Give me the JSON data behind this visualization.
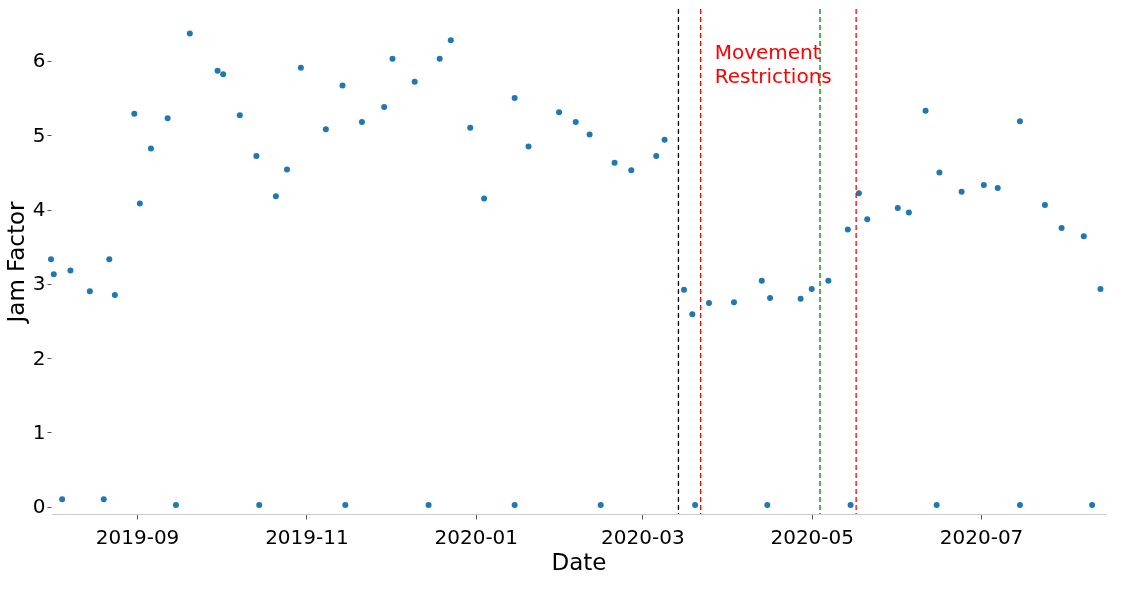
{
  "chart_data": {
    "type": "scatter",
    "xlabel": "Date",
    "ylabel": "Jam Factor",
    "x": [
      "2019-08-01",
      "2019-08-02",
      "2019-08-08",
      "2019-08-15",
      "2019-08-22",
      "2019-08-24",
      "2019-08-31",
      "2019-09-02",
      "2019-09-06",
      "2019-09-12",
      "2019-09-20",
      "2019-09-30",
      "2019-10-02",
      "2019-10-08",
      "2019-10-14",
      "2019-10-21",
      "2019-10-25",
      "2019-10-30",
      "2019-11-08",
      "2019-11-14",
      "2019-11-21",
      "2019-11-29",
      "2019-12-02",
      "2019-12-10",
      "2019-12-19",
      "2019-12-23",
      "2019-12-30",
      "2020-01-04",
      "2020-01-15",
      "2020-01-20",
      "2020-01-31",
      "2020-02-06",
      "2020-02-11",
      "2020-02-20",
      "2020-02-26",
      "2020-03-06",
      "2020-03-09",
      "2020-03-16",
      "2020-03-19",
      "2020-03-25",
      "2020-04-03",
      "2020-04-13",
      "2020-04-16",
      "2020-04-27",
      "2020-05-01",
      "2020-05-07",
      "2020-05-14",
      "2020-05-18",
      "2020-05-21",
      "2020-06-01",
      "2020-06-05",
      "2020-06-11",
      "2020-06-16",
      "2020-06-24",
      "2020-07-02",
      "2020-07-07",
      "2020-07-15",
      "2020-07-24",
      "2020-07-30",
      "2020-08-07",
      "2020-08-13",
      "2019-08-05",
      "2019-08-20",
      "2019-09-15",
      "2019-10-15",
      "2019-11-15",
      "2019-12-15",
      "2020-01-15",
      "2020-02-15",
      "2020-03-20",
      "2020-04-15",
      "2020-05-15",
      "2020-06-15",
      "2020-07-15",
      "2020-08-10"
    ],
    "series": [
      {
        "color": "#1f77b4",
        "values": [
          3.33,
          3.13,
          3.18,
          2.9,
          3.33,
          2.85,
          5.29,
          4.08,
          4.82,
          5.23,
          6.37,
          5.87,
          5.82,
          5.27,
          4.72,
          4.18,
          4.54,
          5.91,
          5.08,
          5.67,
          5.18,
          5.38,
          6.03,
          5.72,
          6.03,
          6.28,
          5.1,
          4.15,
          5.5,
          4.85,
          5.31,
          5.18,
          5.01,
          4.63,
          4.53,
          4.72,
          4.94,
          2.92,
          2.59,
          2.74,
          2.75,
          3.04,
          2.81,
          2.8,
          2.93,
          3.04,
          3.73,
          4.22,
          3.87,
          4.02,
          3.96,
          5.33,
          4.5,
          4.24,
          4.33,
          4.29,
          5.19,
          4.06,
          3.75,
          3.64,
          2.93,
          0.1,
          0.1,
          0.02,
          0.02,
          0.02,
          0.02,
          0.02,
          0.02,
          0.02,
          0.02,
          0.02,
          0.02,
          0.02,
          0.02
        ]
      }
    ],
    "marker": "circle",
    "xlim": [
      "2019-08-01",
      "2020-08-15"
    ],
    "xticks": [
      {
        "value": "2019-09-01",
        "label": "2019-09"
      },
      {
        "value": "2019-11-01",
        "label": "2019-11"
      },
      {
        "value": "2020-01-01",
        "label": "2020-01"
      },
      {
        "value": "2020-03-01",
        "label": "2020-03"
      },
      {
        "value": "2020-05-01",
        "label": "2020-05"
      },
      {
        "value": "2020-07-01",
        "label": "2020-07"
      }
    ],
    "ylim": [
      -0.1,
      6.7
    ],
    "yticks": [
      0,
      1,
      2,
      3,
      4,
      5,
      6
    ],
    "ref_lines": [
      {
        "axis": "x",
        "value": "2020-03-14",
        "color": "#000000",
        "line_style": "dashed"
      },
      {
        "axis": "x",
        "value": "2020-03-22",
        "color": "#ff0000",
        "line_style": "dashed"
      },
      {
        "axis": "x",
        "value": "2020-05-04",
        "color": "#008000",
        "line_style": "dashed"
      },
      {
        "axis": "x",
        "value": "2020-05-17",
        "color": "#ff0000",
        "line_style": "dashed"
      }
    ],
    "annotations": [
      "Movement Restrictions"
    ],
    "grid": false
  }
}
